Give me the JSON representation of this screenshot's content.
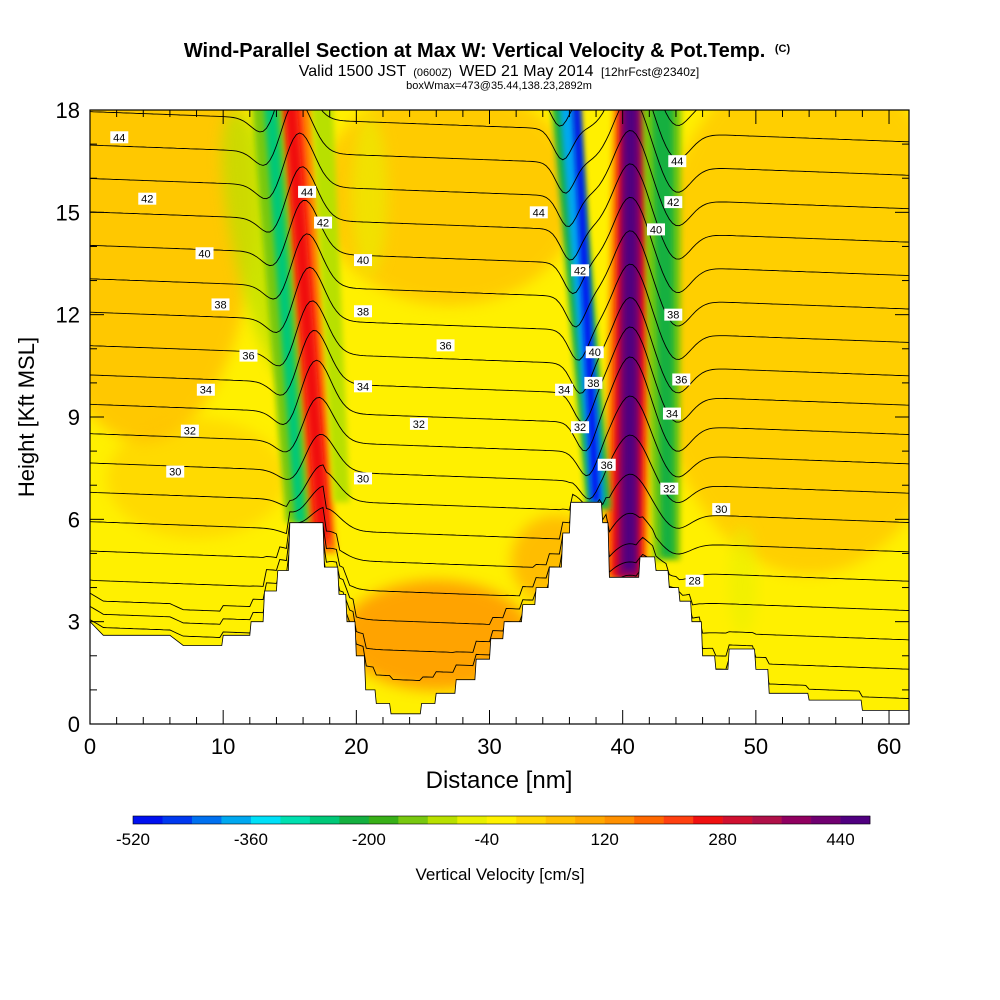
{
  "chart_data": {
    "type": "heatmap",
    "title": "Wind-Parallel Section at Max W: Vertical Velocity & Pot.Temp.",
    "title_mark": "(C)",
    "subtitle_parts": [
      "Valid 1500 JST",
      "(0600Z)",
      "WED 21 May 2014",
      "[12hrFcst@2340z]"
    ],
    "subtitle2": "boxWmax=473@35.44,138.23,2892m",
    "xlabel": "Distance [nm]",
    "ylabel": "Height [Kft MSL]",
    "xlim": [
      0,
      61.5
    ],
    "ylim": [
      0,
      18
    ],
    "xticks": [
      0,
      10,
      20,
      30,
      40,
      50,
      60
    ],
    "yticks": [
      0,
      3,
      6,
      9,
      12,
      15,
      18
    ],
    "colorbar": {
      "label": "Vertical Velocity [cm/s]",
      "min": -520,
      "max": 480,
      "step": 40,
      "tick_labels": [
        -520,
        -360,
        -200,
        -40,
        120,
        280,
        440
      ],
      "colors": [
        "#0010f0",
        "#0038f0",
        "#0070f0",
        "#00a8f0",
        "#00e0f8",
        "#00e0b0",
        "#00c878",
        "#14b040",
        "#38b018",
        "#78c810",
        "#b8e000",
        "#e8f000",
        "#fff200",
        "#ffd800",
        "#ffc000",
        "#ffa800",
        "#ff9000",
        "#ff6800",
        "#ff4010",
        "#f01010",
        "#d01030",
        "#b01048",
        "#900060",
        "#700070",
        "#500080"
      ]
    },
    "terrain_profile": [
      [
        0,
        3.0
      ],
      [
        1,
        2.6
      ],
      [
        5,
        2.6
      ],
      [
        6,
        2.6
      ],
      [
        7,
        2.3
      ],
      [
        9.9,
        2.3
      ],
      [
        10,
        2.6
      ],
      [
        12,
        2.6
      ],
      [
        12.1,
        3.0
      ],
      [
        13,
        3.0
      ],
      [
        13.1,
        3.9
      ],
      [
        14,
        3.9
      ],
      [
        14.1,
        4.5
      ],
      [
        14.9,
        4.5
      ],
      [
        15,
        5.9
      ],
      [
        17.5,
        5.9
      ],
      [
        17.6,
        4.6
      ],
      [
        18.6,
        4.6
      ],
      [
        18.7,
        3.8
      ],
      [
        19.2,
        3.8
      ],
      [
        19.3,
        3.0
      ],
      [
        19.9,
        3.0
      ],
      [
        20,
        2.0
      ],
      [
        20.6,
        2.0
      ],
      [
        20.7,
        1.0
      ],
      [
        21.4,
        1.0
      ],
      [
        21.5,
        0.6
      ],
      [
        22.5,
        0.6
      ],
      [
        22.6,
        0.3
      ],
      [
        24.8,
        0.3
      ],
      [
        24.9,
        0.6
      ],
      [
        25.9,
        0.6
      ],
      [
        26,
        0.9
      ],
      [
        27.4,
        0.9
      ],
      [
        27.5,
        1.3
      ],
      [
        28.9,
        1.3
      ],
      [
        29,
        1.9
      ],
      [
        30,
        1.9
      ],
      [
        30.1,
        2.5
      ],
      [
        31,
        2.5
      ],
      [
        31.1,
        3.0
      ],
      [
        32.4,
        3.0
      ],
      [
        32.5,
        3.5
      ],
      [
        33.4,
        3.5
      ],
      [
        33.5,
        4.0
      ],
      [
        34.4,
        4.0
      ],
      [
        34.5,
        4.6
      ],
      [
        35.4,
        4.6
      ],
      [
        35.5,
        5.6
      ],
      [
        36,
        5.6
      ],
      [
        36.1,
        6.5
      ],
      [
        38.4,
        6.5
      ],
      [
        38.5,
        5.9
      ],
      [
        38.9,
        5.9
      ],
      [
        39,
        4.3
      ],
      [
        41.2,
        4.3
      ],
      [
        41.3,
        4.9
      ],
      [
        42.4,
        4.9
      ],
      [
        42.5,
        4.5
      ],
      [
        43.4,
        4.5
      ],
      [
        43.5,
        4.0
      ],
      [
        44.2,
        4.0
      ],
      [
        44.3,
        3.6
      ],
      [
        45.1,
        3.6
      ],
      [
        45.2,
        3.0
      ],
      [
        45.9,
        3.0
      ],
      [
        46,
        2.0
      ],
      [
        46.9,
        2.0
      ],
      [
        47,
        1.6
      ],
      [
        47.9,
        1.6
      ],
      [
        48,
        2.2
      ],
      [
        49.9,
        2.2
      ],
      [
        50,
        1.6
      ],
      [
        50.9,
        1.6
      ],
      [
        51,
        0.9
      ],
      [
        53.9,
        0.9
      ],
      [
        54,
        0.7
      ],
      [
        57.9,
        0.7
      ],
      [
        58,
        0.4
      ],
      [
        61.5,
        0.4
      ]
    ],
    "vertical_velocity_features": [
      {
        "x": 17.5,
        "y_base": 5.5,
        "value": 280
      },
      {
        "x": 40.5,
        "y_base": 4.3,
        "value": 440
      },
      {
        "x": 37.6,
        "y_base": 6.5,
        "value": -480
      },
      {
        "x": 15.5,
        "y_base": 5.9,
        "value": -240
      },
      {
        "x": 43.5,
        "y_base": 4.9,
        "value": -240
      },
      {
        "x": 24.0,
        "y_base": 0.3,
        "value": 80
      },
      {
        "x": 36.5,
        "y_base": 5.0,
        "value": 80
      }
    ],
    "isentropes": {
      "levels": [
        27,
        28,
        29,
        30,
        31,
        32,
        33,
        34,
        35,
        36,
        37,
        38,
        39,
        40,
        41,
        42,
        43,
        44,
        45,
        46
      ],
      "labels": [
        {
          "text": "44",
          "x": 2.2,
          "y": 17.2
        },
        {
          "text": "42",
          "x": 4.3,
          "y": 15.4
        },
        {
          "text": "40",
          "x": 8.6,
          "y": 13.8
        },
        {
          "text": "38",
          "x": 9.8,
          "y": 12.3
        },
        {
          "text": "36",
          "x": 11.9,
          "y": 10.8
        },
        {
          "text": "34",
          "x": 8.7,
          "y": 9.8
        },
        {
          "text": "32",
          "x": 7.5,
          "y": 8.6
        },
        {
          "text": "30",
          "x": 6.4,
          "y": 7.4
        },
        {
          "text": "44",
          "x": 16.3,
          "y": 15.6
        },
        {
          "text": "42",
          "x": 17.5,
          "y": 14.7
        },
        {
          "text": "40",
          "x": 20.5,
          "y": 13.6
        },
        {
          "text": "38",
          "x": 20.5,
          "y": 12.1
        },
        {
          "text": "36",
          "x": 26.7,
          "y": 11.1
        },
        {
          "text": "34",
          "x": 20.5,
          "y": 9.9
        },
        {
          "text": "32",
          "x": 24.7,
          "y": 8.8
        },
        {
          "text": "30",
          "x": 20.5,
          "y": 7.2
        },
        {
          "text": "44",
          "x": 33.7,
          "y": 15.0
        },
        {
          "text": "42",
          "x": 36.8,
          "y": 13.3
        },
        {
          "text": "40",
          "x": 37.9,
          "y": 10.9
        },
        {
          "text": "38",
          "x": 37.8,
          "y": 10.0
        },
        {
          "text": "34",
          "x": 35.6,
          "y": 9.8
        },
        {
          "text": "32",
          "x": 36.8,
          "y": 8.7
        },
        {
          "text": "36",
          "x": 38.8,
          "y": 7.6
        },
        {
          "text": "44",
          "x": 44.1,
          "y": 16.5
        },
        {
          "text": "42",
          "x": 43.8,
          "y": 15.3
        },
        {
          "text": "40",
          "x": 42.5,
          "y": 14.5
        },
        {
          "text": "38",
          "x": 43.8,
          "y": 12.0
        },
        {
          "text": "36",
          "x": 44.4,
          "y": 10.1
        },
        {
          "text": "34",
          "x": 43.7,
          "y": 9.1
        },
        {
          "text": "32",
          "x": 43.5,
          "y": 6.9
        },
        {
          "text": "30",
          "x": 47.4,
          "y": 6.3
        },
        {
          "text": "28",
          "x": 45.4,
          "y": 4.2
        }
      ]
    }
  }
}
